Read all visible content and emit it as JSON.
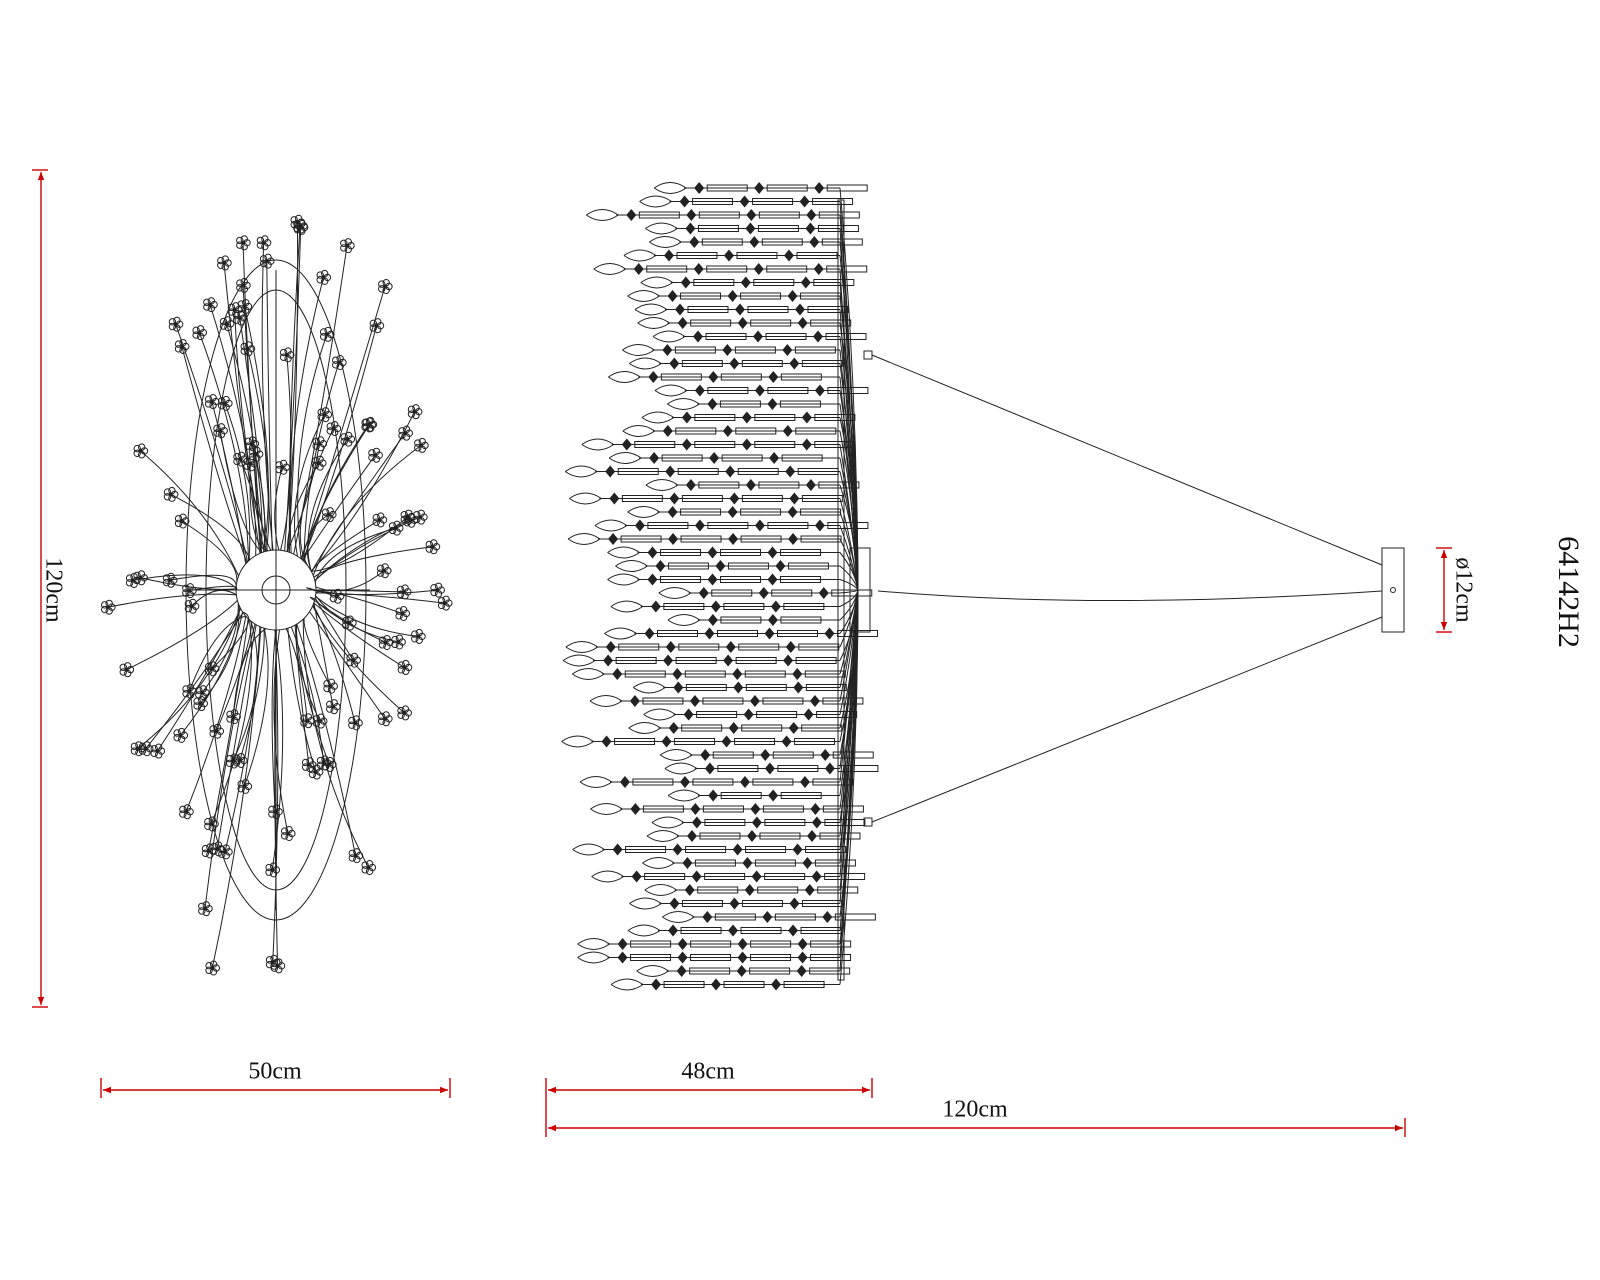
{
  "dimensions": {
    "left_height": "120cm",
    "left_width": "50cm",
    "side_width": "48cm",
    "total_width": "120cm",
    "canopy_diameter": "ø12cm"
  },
  "model": "64142H2"
}
